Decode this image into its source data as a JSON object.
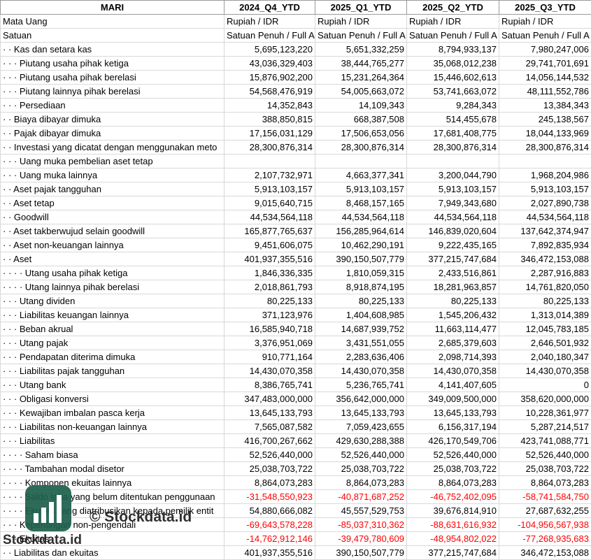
{
  "table": {
    "header": [
      "MARI",
      "2024_Q4_YTD",
      "2025_Q1_YTD",
      "2025_Q2_YTD",
      "2025_Q3_YTD"
    ],
    "rows": [
      [
        "Mata Uang",
        "Rupiah / IDR",
        "Rupiah / IDR",
        "Rupiah / IDR",
        "Rupiah / IDR"
      ],
      [
        "Satuan",
        "Satuan Penuh / Full A",
        "Satuan Penuh / Full A",
        "Satuan Penuh / Full A",
        "Satuan Penuh / Full A"
      ],
      [
        "· · Kas dan setara kas",
        "5,695,123,220",
        "5,651,332,259",
        "8,794,933,137",
        "7,980,247,006"
      ],
      [
        "· · · Piutang usaha pihak ketiga",
        "43,036,329,403",
        "38,444,765,277",
        "35,068,012,238",
        "29,741,701,691"
      ],
      [
        "· · · Piutang usaha pihak berelasi",
        "15,876,902,200",
        "15,231,264,364",
        "15,446,602,613",
        "14,056,144,532"
      ],
      [
        "· · · Piutang lainnya pihak berelasi",
        "54,568,476,919",
        "54,005,663,072",
        "53,741,663,072",
        "48,111,552,786"
      ],
      [
        "· · · Persediaan",
        "14,352,843",
        "14,109,343",
        "9,284,343",
        "13,384,343"
      ],
      [
        "· · Biaya dibayar dimuka",
        "388,850,815",
        "668,387,508",
        "514,455,678",
        "245,138,567"
      ],
      [
        "· · Pajak dibayar dimuka",
        "17,156,031,129",
        "17,506,653,056",
        "17,681,408,775",
        "18,044,133,969"
      ],
      [
        "· · Investasi yang dicatat dengan menggunakan meto",
        "28,300,876,314",
        "28,300,876,314",
        "28,300,876,314",
        "28,300,876,314"
      ],
      [
        "· · · Uang muka pembelian aset tetap"
      ],
      [
        "· · · Uang muka lainnya",
        "2,107,732,971",
        "4,663,377,341",
        "3,200,044,790",
        "1,968,204,986"
      ],
      [
        "· · Aset pajak tangguhan",
        "5,913,103,157",
        "5,913,103,157",
        "5,913,103,157",
        "5,913,103,157"
      ],
      [
        "· · Aset tetap",
        "9,015,640,715",
        "8,468,157,165",
        "7,949,343,680",
        "2,027,890,738"
      ],
      [
        "· · Goodwill",
        "44,534,564,118",
        "44,534,564,118",
        "44,534,564,118",
        "44,534,564,118"
      ],
      [
        "· · Aset takberwujud selain goodwill",
        "165,877,765,637",
        "156,285,964,614",
        "146,839,020,604",
        "137,642,374,947"
      ],
      [
        "· · Aset non-keuangan lainnya",
        "9,451,606,075",
        "10,462,290,191",
        "9,222,435,165",
        "7,892,835,934"
      ],
      [
        "· · Aset",
        "401,937,355,516",
        "390,150,507,779",
        "377,215,747,684",
        "346,472,153,088"
      ],
      [
        "· · · · Utang usaha pihak ketiga",
        "1,846,336,335",
        "1,810,059,315",
        "2,433,516,861",
        "2,287,916,883"
      ],
      [
        "· · · · Utang lainnya pihak berelasi",
        "2,018,861,793",
        "8,918,874,195",
        "18,281,963,857",
        "14,761,820,050"
      ],
      [
        "· · · Utang dividen",
        "80,225,133",
        "80,225,133",
        "80,225,133",
        "80,225,133"
      ],
      [
        "· · · Liabilitas keuangan lainnya",
        "371,123,976",
        "1,404,608,985",
        "1,545,206,432",
        "1,313,014,389"
      ],
      [
        "· · · Beban akrual",
        "16,585,940,718",
        "14,687,939,752",
        "11,663,114,477",
        "12,045,783,185"
      ],
      [
        "· · · Utang pajak",
        "3,376,951,069",
        "3,431,551,055",
        "2,685,379,603",
        "2,646,501,932"
      ],
      [
        "· · · Pendapatan diterima dimuka",
        "910,771,164",
        "2,283,636,406",
        "2,098,714,393",
        "2,040,180,347"
      ],
      [
        "· · · Liabilitas pajak tangguhan",
        "14,430,070,358",
        "14,430,070,358",
        "14,430,070,358",
        "14,430,070,358"
      ],
      [
        "· · · Utang bank",
        "8,386,765,741",
        "5,236,765,741",
        "4,141,407,605",
        "0"
      ],
      [
        "· · · Obligasi konversi",
        "347,483,000,000",
        "356,642,000,000",
        "349,009,500,000",
        "358,620,000,000"
      ],
      [
        "· · · Kewajiban imbalan pasca kerja",
        "13,645,133,793",
        "13,645,133,793",
        "13,645,133,793",
        "10,228,361,977"
      ],
      [
        "· · · Liabilitas non-keuangan lainnya",
        "7,565,087,582",
        "7,059,423,655",
        "6,156,317,194",
        "5,287,214,517"
      ],
      [
        "· · · Liabilitas",
        "416,700,267,662",
        "429,630,288,388",
        "426,170,549,706",
        "423,741,088,771"
      ],
      [
        "· · · · Saham biasa",
        "52,526,440,000",
        "52,526,440,000",
        "52,526,440,000",
        "52,526,440,000"
      ],
      [
        "· · · · Tambahan modal disetor",
        "25,038,703,722",
        "25,038,703,722",
        "25,038,703,722",
        "25,038,703,722"
      ],
      [
        "· · · · Komponen ekuitas lainnya",
        "8,864,073,283",
        "8,864,073,283",
        "8,864,073,283",
        "8,864,073,283"
      ],
      [
        "· · · · Saldo laba yang belum ditentukan penggunaan",
        "-31,548,550,923",
        "-40,871,687,252",
        "-46,752,402,095",
        "-58,741,584,750"
      ],
      [
        "· · · · Ekuitas yang diatribusikan kepada pemilik entit",
        "54,880,666,082",
        "45,557,529,753",
        "39,676,814,910",
        "27,687,632,255"
      ],
      [
        "· · · Kepentingan non-pengendali",
        "-69,643,578,228",
        "-85,037,310,362",
        "-88,631,616,932",
        "-104,956,567,938"
      ],
      [
        "· · · Ekuitas",
        "-14,762,912,146",
        "-39,479,780,609",
        "-48,954,802,022",
        "-77,268,935,683"
      ],
      [
        "· · Liabilitas dan ekuitas",
        "401,937,355,516",
        "390,150,507,779",
        "377,215,747,684",
        "346,472,153,088"
      ]
    ]
  },
  "watermark": {
    "text": "© Stockdata.id",
    "brand": "Stockdata.id"
  }
}
